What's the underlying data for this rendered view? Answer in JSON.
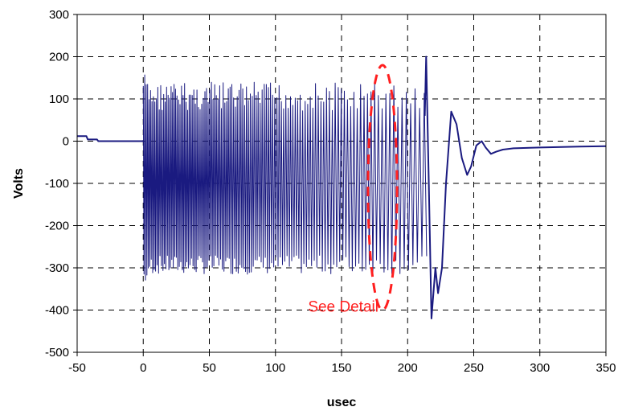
{
  "chart_data": {
    "type": "line",
    "title": "",
    "xlabel": "usec",
    "ylabel": "Volts",
    "xlim": [
      -50,
      350
    ],
    "ylim": [
      -500,
      300
    ],
    "xticks": [
      -50,
      0,
      50,
      100,
      150,
      200,
      250,
      300,
      350
    ],
    "yticks": [
      -500,
      -400,
      -300,
      -200,
      -100,
      0,
      100,
      200,
      300
    ],
    "grid": "dashed",
    "colors": {
      "series": "#1a1a80",
      "annotation": "#ff1f1f",
      "grid": "#000000"
    },
    "series": [
      {
        "segments": [
          {
            "kind": "baseline",
            "x": [
              -50,
              -43,
              -42,
              -35,
              -34,
              0
            ],
            "y": [
              12,
              12,
              4,
              4,
              0,
              0
            ]
          },
          {
            "kind": "burst",
            "x_range": [
              0,
              213
            ],
            "upper_envelope": 140,
            "lower_envelope": -315,
            "start_period_usec": 1.1,
            "end_period_usec": 3.6
          },
          {
            "kind": "ringdown",
            "x": [
              213,
              214,
              216,
              218,
              221,
              223,
              226,
              229,
              233,
              237,
              241,
              245,
              248,
              252,
              256,
              259,
              263,
              267,
              272,
              280,
              300,
              330,
              350
            ],
            "y": [
              60,
              200,
              -100,
              -420,
              -300,
              -360,
              -300,
              -100,
              70,
              40,
              -40,
              -80,
              -60,
              -10,
              0,
              -15,
              -30,
              -25,
              -20,
              -17,
              -15,
              -13,
              -12
            ]
          }
        ]
      }
    ],
    "annotation": {
      "text": "See Detail",
      "shape": "dashed-ellipse",
      "center": [
        181,
        -110
      ],
      "rx_usec": 11,
      "ry_volts": 290
    }
  }
}
